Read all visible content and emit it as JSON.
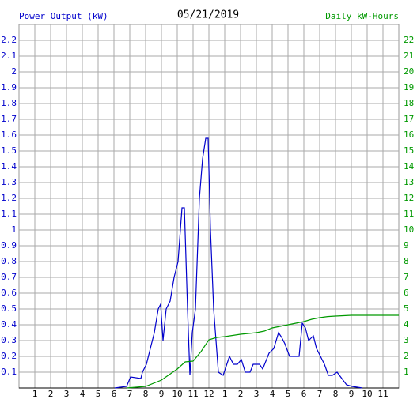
{
  "chart_data": {
    "type": "line",
    "title": "05/21/2019",
    "y_label": "Power Output (kW)",
    "y2_label": "Daily kW-Hours",
    "xlim": [
      0,
      24
    ],
    "xticks": [
      1,
      2,
      3,
      4,
      5,
      6,
      7,
      8,
      9,
      10,
      11,
      12,
      {
        "value": 13,
        "label": "1"
      },
      {
        "value": 14,
        "label": "2"
      },
      {
        "value": 15,
        "label": "3"
      },
      {
        "value": 16,
        "label": "4"
      },
      {
        "value": 17,
        "label": "5"
      },
      {
        "value": 18,
        "label": "6"
      },
      {
        "value": 19,
        "label": "7"
      },
      {
        "value": 20,
        "label": "8"
      },
      {
        "value": 21,
        "label": "9"
      },
      {
        "value": 22,
        "label": "10"
      },
      {
        "value": 23,
        "label": "11"
      }
    ],
    "ylim": [
      0,
      2.3
    ],
    "yticks": [
      0.1,
      0.2,
      0.3,
      0.4,
      0.5,
      0.6,
      0.7,
      0.8,
      0.9,
      1.0,
      1.1,
      1.2,
      1.3,
      1.4,
      1.5,
      1.6,
      1.7,
      1.8,
      1.9,
      2.0,
      2.1,
      2.2
    ],
    "y2lim": [
      0,
      23
    ],
    "y2ticks": [
      1,
      2,
      3,
      4,
      5,
      6,
      7,
      8,
      9,
      10,
      11,
      12,
      13,
      14,
      15,
      16,
      17,
      18,
      19,
      20,
      21,
      22
    ],
    "grid": true,
    "series": [
      {
        "name": "Power Output (kW)",
        "color": "#0000cc",
        "x": [
          6.05,
          6.8,
          7.05,
          7.7,
          7.8,
          8.05,
          8.3,
          8.55,
          8.8,
          8.95,
          9.1,
          9.3,
          9.55,
          9.8,
          10.05,
          10.3,
          10.45,
          10.65,
          10.8,
          10.95,
          11.15,
          11.4,
          11.6,
          11.8,
          11.95,
          12.1,
          12.3,
          12.45,
          12.6,
          12.9,
          13.3,
          13.55,
          13.8,
          14.05,
          14.3,
          14.6,
          14.8,
          15.2,
          15.4,
          15.8,
          16.1,
          16.4,
          16.6,
          16.8,
          17.1,
          17.4,
          17.7,
          17.9,
          18.1,
          18.3,
          18.6,
          18.8,
          19.05,
          19.3,
          19.55,
          19.8,
          20.1,
          20.4,
          20.7,
          21.05,
          21.7
        ],
        "values": [
          0,
          0.01,
          0.07,
          0.06,
          0.1,
          0.15,
          0.25,
          0.35,
          0.5,
          0.53,
          0.3,
          0.5,
          0.55,
          0.7,
          0.8,
          1.14,
          1.14,
          0.5,
          0.08,
          0.35,
          0.5,
          1.2,
          1.45,
          1.58,
          1.58,
          1.0,
          0.5,
          0.3,
          0.1,
          0.08,
          0.2,
          0.15,
          0.15,
          0.18,
          0.1,
          0.1,
          0.15,
          0.15,
          0.12,
          0.22,
          0.25,
          0.35,
          0.32,
          0.28,
          0.2,
          0.2,
          0.2,
          0.41,
          0.38,
          0.3,
          0.33,
          0.25,
          0.2,
          0.15,
          0.08,
          0.08,
          0.1,
          0.06,
          0.02,
          0.01,
          0
        ]
      },
      {
        "name": "Daily kW-Hours",
        "color": "#009900",
        "axis": "y2",
        "x": [
          6.8,
          8,
          9,
          10,
          10.5,
          11,
          11.5,
          12,
          12.5,
          13,
          14,
          15,
          15.5,
          16,
          17,
          17.5,
          18,
          18.5,
          19,
          19.5,
          20,
          21,
          24
        ],
        "values": [
          0,
          0.1,
          0.5,
          1.2,
          1.65,
          1.7,
          2.3,
          3.05,
          3.2,
          3.25,
          3.4,
          3.5,
          3.6,
          3.8,
          4.0,
          4.1,
          4.2,
          4.35,
          4.45,
          4.52,
          4.55,
          4.6,
          4.6
        ]
      }
    ]
  }
}
